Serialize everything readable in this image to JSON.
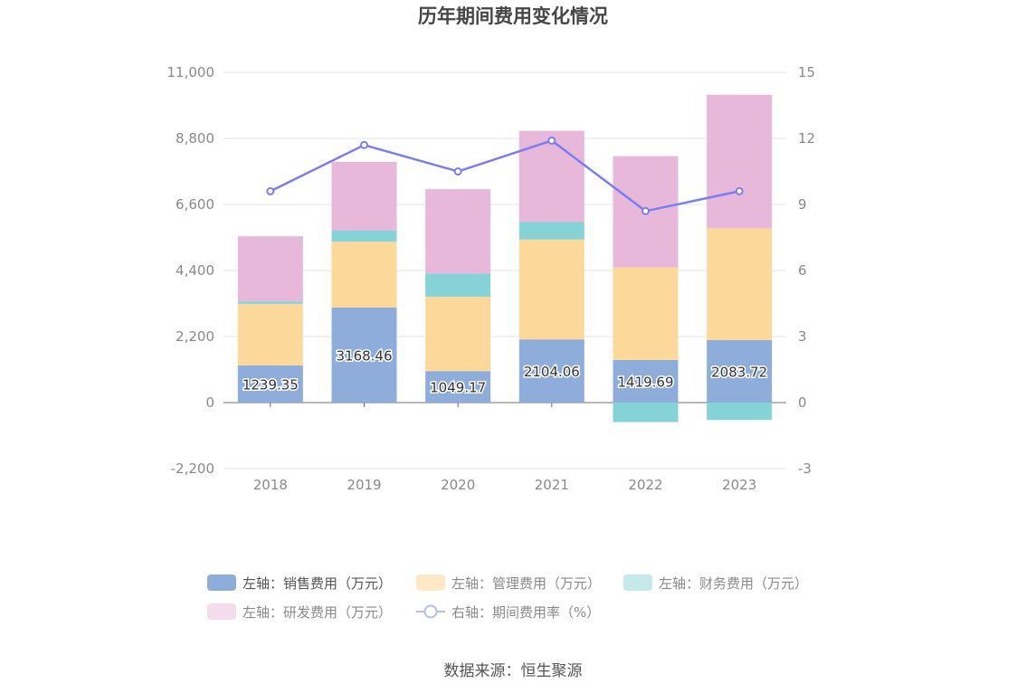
{
  "chart_data": {
    "type": "bar",
    "title": "历年期间费用变化情况",
    "categories": [
      "2018",
      "2019",
      "2020",
      "2021",
      "2022",
      "2023"
    ],
    "left_axis": {
      "ticks": [
        "11,000",
        "8,800",
        "6,600",
        "4,400",
        "2,200",
        "0",
        "-2,200"
      ],
      "min": -2200,
      "max": 11000
    },
    "right_axis": {
      "ticks": [
        "15",
        "12",
        "9",
        "6",
        "3",
        "0",
        "-3"
      ],
      "min": -3,
      "max": 15
    },
    "stacked": true,
    "series": [
      {
        "name": "左轴：销售费用（万元）",
        "axis": "left",
        "type": "bar",
        "color": "#8eaddb",
        "values": [
          1239.35,
          3168.46,
          1049.17,
          2104.06,
          1419.69,
          2083.72
        ],
        "labels": [
          "1239.35",
          "3168.46",
          "1049.17",
          "2104.06",
          "1419.69",
          "2083.72"
        ]
      },
      {
        "name": "左轴：管理费用（万元）",
        "axis": "left",
        "type": "bar",
        "color": "#fdd89b",
        "values": [
          2050,
          2190,
          2480,
          3330,
          3080,
          3720
        ]
      },
      {
        "name": "左轴：财务费用（万元）",
        "axis": "left",
        "type": "bar",
        "color": "#85d3d6",
        "values": [
          80,
          380,
          770,
          590,
          -650,
          -580
        ]
      },
      {
        "name": "左轴：研发费用（万元）",
        "axis": "left",
        "type": "bar",
        "color": "#e7b8da",
        "values": [
          2170,
          2280,
          2810,
          3030,
          3710,
          4450
        ]
      },
      {
        "name": "右轴：期间费用率（%）",
        "axis": "right",
        "type": "line",
        "color": "#7b7ef0",
        "values": [
          9.6,
          11.7,
          10.5,
          11.9,
          8.7,
          9.6
        ]
      }
    ],
    "legend": {
      "position": "bottom",
      "items": [
        {
          "label": "左轴：销售费用（万元）",
          "color": "#8eaddb",
          "shape": "bar"
        },
        {
          "label": "左轴：管理费用（万元）",
          "color": "#fde8c8",
          "shape": "bar"
        },
        {
          "label": "左轴：财务费用（万元）",
          "color": "#c2eaea",
          "shape": "bar"
        },
        {
          "label": "左轴：研发费用（万元）",
          "color": "#f3dcec",
          "shape": "bar"
        },
        {
          "label": "右轴：期间费用率（%）",
          "color": "#b9baf6",
          "shape": "line"
        }
      ]
    },
    "grid": true
  },
  "source": "数据来源：恒生聚源"
}
